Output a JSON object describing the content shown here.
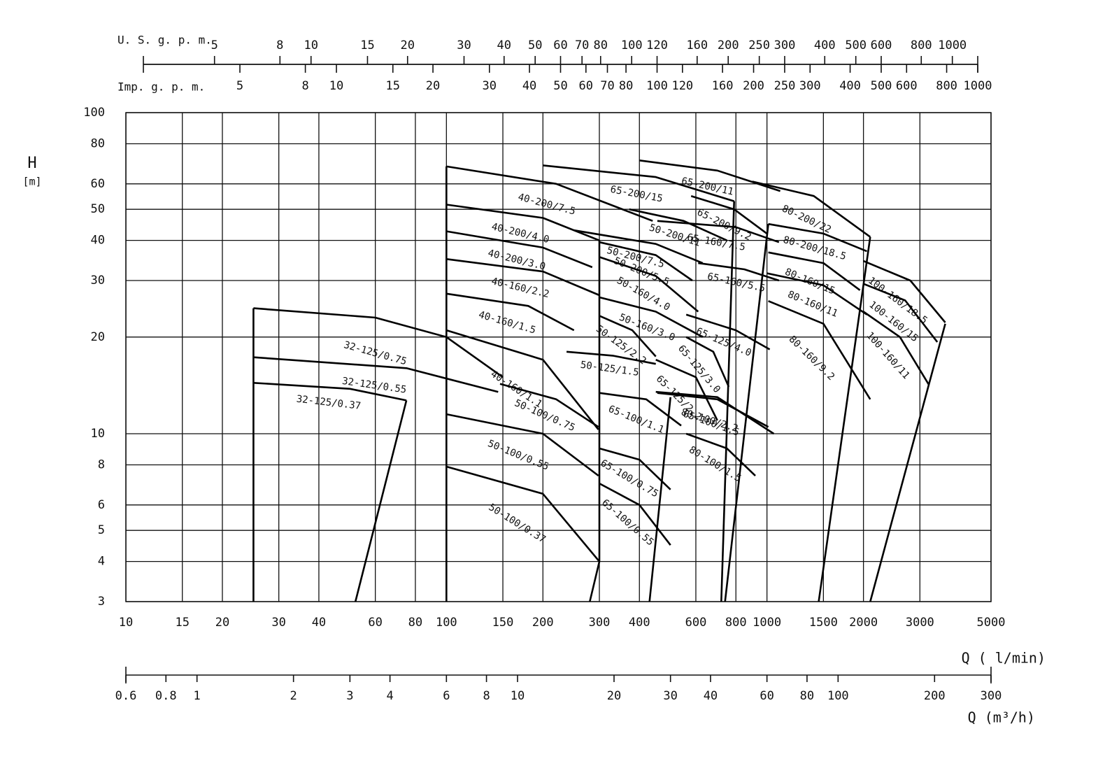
{
  "chart_data": {
    "type": "pump-curves",
    "ylabel": "H",
    "yunit": "[m]",
    "xlabel": "Q ( l/min)",
    "xlim": [
      10,
      5000
    ],
    "ylim": [
      3,
      100
    ],
    "log_x": true,
    "log_y": true,
    "grid": true,
    "color": "#000000",
    "xticks": [
      10,
      15,
      20,
      30,
      40,
      60,
      80,
      100,
      150,
      200,
      300,
      400,
      600,
      800,
      1000,
      1500,
      2000,
      3000,
      5000
    ],
    "yticks": [
      3,
      4,
      5,
      6,
      8,
      10,
      20,
      30,
      40,
      50,
      60,
      80,
      100
    ],
    "axes": [
      {
        "label": "U. S. g. p. m.",
        "lim": [
          3,
          1200
        ],
        "ticks": [
          5,
          8,
          10,
          15,
          20,
          30,
          40,
          50,
          60,
          70,
          80,
          100,
          120,
          160,
          200,
          250,
          300,
          400,
          500,
          600,
          800,
          1000
        ]
      },
      {
        "label": "Imp. g. p. m.",
        "lim": [
          2.5,
          1000
        ],
        "ticks": [
          5,
          8,
          10,
          15,
          20,
          30,
          40,
          50,
          60,
          70,
          80,
          100,
          120,
          160,
          200,
          250,
          300,
          400,
          500,
          600,
          800,
          1000
        ]
      },
      {
        "label": "Q (m³/h)",
        "lim": [
          0.6,
          300
        ],
        "ticks": [
          0.6,
          0.8,
          1,
          2,
          3,
          4,
          6,
          8,
          10,
          20,
          30,
          40,
          60,
          80,
          100,
          200,
          300
        ]
      }
    ],
    "series": [
      {
        "name": "32-125/0.75",
        "x": [
          25,
          60,
          100,
          150
        ],
        "values": [
          24.6,
          23,
          20,
          15
        ]
      },
      {
        "name": "32-125/0.55",
        "x": [
          25,
          75,
          145
        ],
        "values": [
          17.3,
          16,
          13.5
        ]
      },
      {
        "name": "32-125/0.37",
        "x": [
          25,
          50,
          75
        ],
        "values": [
          14.4,
          13.8,
          12.7
        ]
      },
      {
        "name": "40-200/7.5",
        "x": [
          100,
          220,
          440
        ],
        "values": [
          68,
          60,
          46
        ]
      },
      {
        "name": "40-200/4.0",
        "x": [
          100,
          200,
          300
        ],
        "values": [
          51.7,
          47,
          40
        ]
      },
      {
        "name": "40-200/3.0",
        "x": [
          100,
          200,
          285
        ],
        "values": [
          42.7,
          38,
          33
        ]
      },
      {
        "name": "40-160/2.2",
        "x": [
          100,
          200,
          300
        ],
        "values": [
          35,
          32,
          27
        ]
      },
      {
        "name": "40-160/1.5",
        "x": [
          100,
          180,
          250
        ],
        "values": [
          27.3,
          25,
          21
        ]
      },
      {
        "name": "40-160/1.1",
        "x": [
          100,
          200,
          298
        ],
        "values": [
          21,
          17,
          10.3
        ]
      },
      {
        "name": "65-200/15",
        "x": [
          200,
          450,
          790
        ],
        "values": [
          68.5,
          63,
          53
        ]
      },
      {
        "name": "50-200/11",
        "x": [
          372,
          550,
          750
        ],
        "values": [
          50,
          46,
          40
        ]
      },
      {
        "name": "50-200/7.5",
        "x": [
          250,
          450,
          630
        ],
        "values": [
          43,
          39,
          34
        ]
      },
      {
        "name": "50-200/5.5",
        "x": [
          300,
          450,
          585
        ],
        "values": [
          39.5,
          36,
          30
        ]
      },
      {
        "name": "50-160/4.0",
        "x": [
          300,
          450,
          610
        ],
        "values": [
          35.5,
          31,
          24
        ]
      },
      {
        "name": "50-160/3.0",
        "x": [
          300,
          450,
          630
        ],
        "values": [
          26.6,
          24,
          20
        ]
      },
      {
        "name": "50-125/2.2",
        "x": [
          300,
          380,
          450
        ],
        "values": [
          23.3,
          21,
          17.4
        ]
      },
      {
        "name": "50-125/1.5",
        "x": [
          237,
          330,
          450
        ],
        "values": [
          18,
          17.5,
          16.5
        ]
      },
      {
        "name": "50-100/0.75",
        "x": [
          147,
          220,
          298
        ],
        "values": [
          14.3,
          12.8,
          10.5
        ]
      },
      {
        "name": "50-100/0.55",
        "x": [
          100,
          200,
          298
        ],
        "values": [
          11.5,
          10,
          7.4
        ]
      },
      {
        "name": "50-100/0.37",
        "x": [
          100,
          200,
          300
        ],
        "values": [
          7.9,
          6.5,
          4
        ]
      },
      {
        "name": "65-200/9.2",
        "x": [
          580,
          790,
          1000
        ],
        "values": [
          55,
          50,
          42
        ]
      },
      {
        "name": "65-200/11",
        "x": [
          400,
          700,
          1100
        ],
        "values": [
          71,
          66,
          57
        ]
      },
      {
        "name": "65-160/7.5",
        "x": [
          455,
          800,
          1090
        ],
        "values": [
          46,
          44,
          39.5
        ]
      },
      {
        "name": "65-160/5.5",
        "x": [
          610,
          850,
          1090
        ],
        "values": [
          34,
          32.5,
          30
        ]
      },
      {
        "name": "65-125/4.0",
        "x": [
          560,
          800,
          1020
        ],
        "values": [
          23.5,
          21,
          18.3
        ]
      },
      {
        "name": "65-125/3.0",
        "x": [
          560,
          680,
          760
        ],
        "values": [
          20,
          18,
          14
        ]
      },
      {
        "name": "65-125/2.2",
        "x": [
          450,
          600,
          700
        ],
        "values": [
          17,
          15,
          11
        ]
      },
      {
        "name": "65-100/1.5",
        "x": [
          450,
          700,
          1050
        ],
        "values": [
          13.5,
          13,
          10
        ]
      },
      {
        "name": "65-100/1.1",
        "x": [
          300,
          420,
          540
        ],
        "values": [
          13.4,
          12.8,
          10.6
        ]
      },
      {
        "name": "65-100/0.75",
        "x": [
          300,
          400,
          500
        ],
        "values": [
          9,
          8.3,
          6.7
        ]
      },
      {
        "name": "65-100/0.55",
        "x": [
          300,
          400,
          500
        ],
        "values": [
          7,
          6,
          4.5
        ]
      },
      {
        "name": "80-200/22",
        "x": [
          900,
          1400,
          2100
        ],
        "values": [
          61,
          55,
          41
        ]
      },
      {
        "name": "80-200/18.5",
        "x": [
          1010,
          1500,
          2050
        ],
        "values": [
          45,
          42,
          37
        ]
      },
      {
        "name": "80-160/15",
        "x": [
          1010,
          1500,
          1950
        ],
        "values": [
          36.7,
          34,
          28
        ]
      },
      {
        "name": "80-160/11",
        "x": [
          1000,
          1500,
          2050
        ],
        "values": [
          31.6,
          29,
          23.5
        ]
      },
      {
        "name": "80-160/9.2",
        "x": [
          1010,
          1500,
          2100
        ],
        "values": [
          25.9,
          22,
          12.8
        ]
      },
      {
        "name": "80-100/2.2",
        "x": [
          455,
          700,
          1010
        ],
        "values": [
          13.4,
          12.8,
          10.5
        ]
      },
      {
        "name": "80-100/1.5",
        "x": [
          560,
          750,
          920
        ],
        "values": [
          10,
          9,
          7.4
        ]
      },
      {
        "name": "100-160/18.5",
        "x": [
          2000,
          2800,
          3600
        ],
        "values": [
          34.5,
          30,
          22.2
        ]
      },
      {
        "name": "100-160/15",
        "x": [
          2000,
          2700,
          3400
        ],
        "values": [
          29.3,
          26,
          19.3
        ]
      },
      {
        "name": "100-160/11",
        "x": [
          2000,
          2600,
          3200
        ],
        "values": [
          24,
          20,
          14.2
        ]
      }
    ],
    "limits": [
      {
        "x": [
          25,
          25
        ],
        "values": [
          24.6,
          3
        ]
      },
      {
        "x": [
          100,
          100
        ],
        "values": [
          68,
          3
        ]
      },
      {
        "x": [
          75,
          52
        ],
        "values": [
          12.7,
          3
        ]
      },
      {
        "x": [
          300,
          300,
          280
        ],
        "values": [
          40,
          4,
          3
        ]
      },
      {
        "x": [
          500,
          430
        ],
        "values": [
          13,
          3
        ]
      },
      {
        "x": [
          790,
          720
        ],
        "values": [
          53,
          3
        ]
      },
      {
        "x": [
          1010,
          740
        ],
        "values": [
          45,
          3
        ]
      },
      {
        "x": [
          2100,
          1450
        ],
        "values": [
          41,
          3
        ]
      },
      {
        "x": [
          3600,
          2100
        ],
        "values": [
          22,
          3
        ]
      }
    ]
  }
}
